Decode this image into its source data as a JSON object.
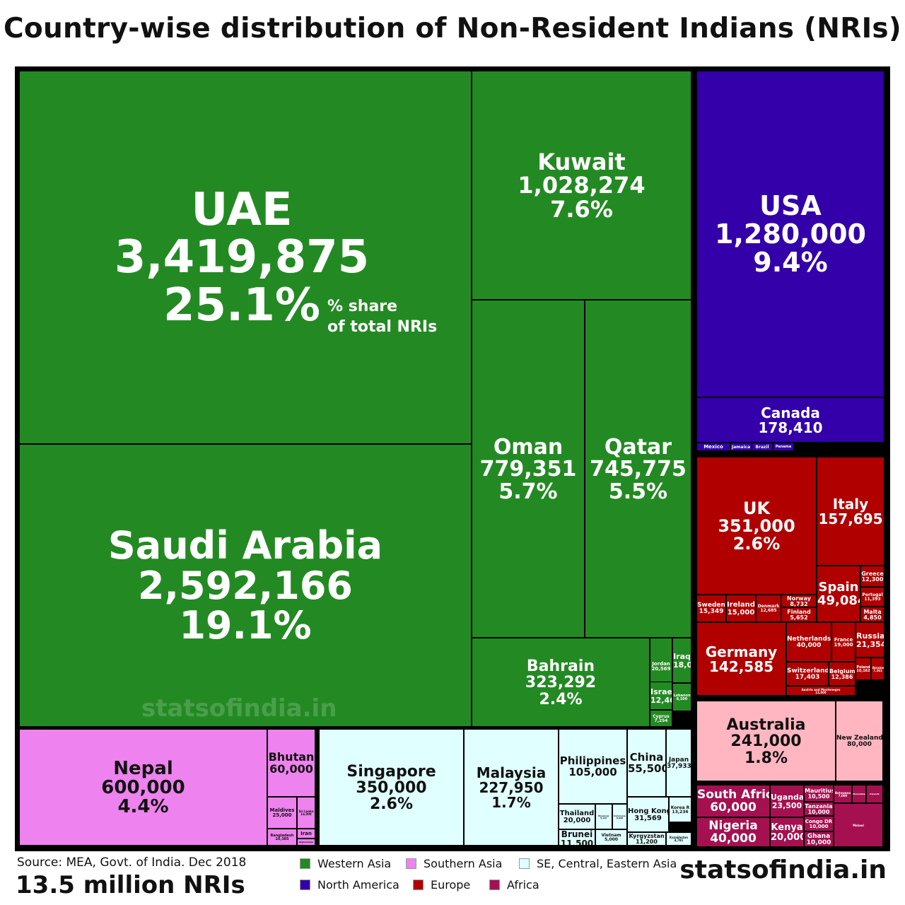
{
  "title": "Country-wise distribution of Non-Resident Indians (NRIs)",
  "share_note": [
    "% share",
    "of total NRIs"
  ],
  "watermark": "statsofindia.in",
  "source": "Source: MEA, Govt. of India. Dec 2018",
  "total": "13.5 million NRIs",
  "brand": "statsofindia.in",
  "colors": {
    "Western Asia": "#238a23",
    "Southern Asia": "#ee82ee",
    "SE, Central, Eastern Asia": "#e0ffff",
    "North America": "#3300aa",
    "Europe": "#b00000",
    "Africa": "#a51050",
    "Oceania": "#ffb6c1"
  },
  "legend": [
    {
      "label": "Western Asia",
      "color": "#238a23"
    },
    {
      "label": "Southern Asia",
      "color": "#ee82ee"
    },
    {
      "label": "SE, Central, Eastern Asia",
      "color": "#e0ffff"
    },
    {
      "label": "North America",
      "color": "#3300aa"
    },
    {
      "label": "Europe",
      "color": "#b00000"
    },
    {
      "label": "Africa",
      "color": "#a51050"
    }
  ],
  "chart_data": {
    "type": "treemap",
    "title": "Country-wise distribution of Non-Resident Indians (NRIs)",
    "total_label": "13.5 million NRIs",
    "items": [
      {
        "name": "UAE",
        "value": 3419875,
        "value_label": "3,419,875",
        "share": "25.1%",
        "region": "Western Asia"
      },
      {
        "name": "Saudi Arabia",
        "value": 2592166,
        "value_label": "2,592,166",
        "share": "19.1%",
        "region": "Western Asia"
      },
      {
        "name": "Kuwait",
        "value": 1028274,
        "value_label": "1,028,274",
        "share": "7.6%",
        "region": "Western Asia"
      },
      {
        "name": "Oman",
        "value": 779351,
        "value_label": "779,351",
        "share": "5.7%",
        "region": "Western Asia"
      },
      {
        "name": "Qatar",
        "value": 745775,
        "value_label": "745,775",
        "share": "5.5%",
        "region": "Western Asia"
      },
      {
        "name": "Bahrain",
        "value": 323292,
        "value_label": "323,292",
        "share": "2.4%",
        "region": "Western Asia"
      },
      {
        "name": "Jordan",
        "value": 20569,
        "value_label": "20,569",
        "region": "Western Asia"
      },
      {
        "name": "Iraq",
        "value": 18000,
        "value_label": "18,000",
        "region": "Western Asia"
      },
      {
        "name": "Israel",
        "value": 12467,
        "value_label": "12,467",
        "region": "Western Asia"
      },
      {
        "name": "Lebanon",
        "value": 8500,
        "value_label": "8,500",
        "region": "Western Asia"
      },
      {
        "name": "Cyprus",
        "value": 7254,
        "value_label": "7,254",
        "region": "Western Asia"
      },
      {
        "name": "USA",
        "value": 1280000,
        "value_label": "1,280,000",
        "share": "9.4%",
        "region": "North America"
      },
      {
        "name": "Canada",
        "value": 178410,
        "value_label": "178,410",
        "region": "North America"
      },
      {
        "name": "Mexico",
        "value": 0,
        "value_label": "",
        "region": "North America"
      },
      {
        "name": "Jamaica",
        "value": 0,
        "value_label": "",
        "region": "North America"
      },
      {
        "name": "Brazil",
        "value": 0,
        "value_label": "",
        "region": "North America"
      },
      {
        "name": "Panama",
        "value": 0,
        "value_label": "",
        "region": "North America"
      },
      {
        "name": "UK",
        "value": 351000,
        "value_label": "351,000",
        "share": "2.6%",
        "region": "Europe"
      },
      {
        "name": "Italy",
        "value": 157695,
        "value_label": "157,695",
        "region": "Europe"
      },
      {
        "name": "Spain",
        "value": 49084,
        "value_label": "49,084",
        "region": "Europe"
      },
      {
        "name": "Greece",
        "value": 12300,
        "value_label": "12,300",
        "region": "Europe"
      },
      {
        "name": "Portugal",
        "value": 11393,
        "value_label": "11,393",
        "region": "Europe"
      },
      {
        "name": "Malta",
        "value": 4850,
        "value_label": "4,850",
        "region": "Europe"
      },
      {
        "name": "Sweden",
        "value": 15349,
        "value_label": "15,349",
        "region": "Europe"
      },
      {
        "name": "Ireland",
        "value": 15000,
        "value_label": "15,000",
        "region": "Europe"
      },
      {
        "name": "Denmark",
        "value": 12685,
        "value_label": "12,685",
        "region": "Europe"
      },
      {
        "name": "Norway",
        "value": 8732,
        "value_label": "8,732",
        "region": "Europe"
      },
      {
        "name": "Finland",
        "value": 5652,
        "value_label": "5,652",
        "region": "Europe"
      },
      {
        "name": "Germany",
        "value": 142585,
        "value_label": "142,585",
        "region": "Europe"
      },
      {
        "name": "Netherlands",
        "value": 40000,
        "value_label": "40,000",
        "region": "Europe"
      },
      {
        "name": "France",
        "value": 19000,
        "value_label": "19,000",
        "region": "Europe"
      },
      {
        "name": "Switzerland",
        "value": 17403,
        "value_label": "17,403",
        "region": "Europe"
      },
      {
        "name": "Belgium",
        "value": 12386,
        "value_label": "12,386",
        "region": "Europe"
      },
      {
        "name": "Austria and Montenegro",
        "value": 12000,
        "value_label": "12,000",
        "region": "Europe"
      },
      {
        "name": "Russia",
        "value": 21354,
        "value_label": "21,354",
        "region": "Europe"
      },
      {
        "name": "Poland",
        "value": 10162,
        "value_label": "10,162",
        "region": "Europe"
      },
      {
        "name": "Ukraine",
        "value": 7361,
        "value_label": "7,361",
        "region": "Europe"
      },
      {
        "name": "Australia",
        "value": 241000,
        "value_label": "241,000",
        "share": "1.8%",
        "region": "Oceania"
      },
      {
        "name": "New Zealand",
        "value": 80000,
        "value_label": "80,000",
        "region": "Oceania"
      },
      {
        "name": "South Africa",
        "value": 60000,
        "value_label": "60,000",
        "region": "Africa"
      },
      {
        "name": "Nigeria",
        "value": 40000,
        "value_label": "40,000",
        "region": "Africa"
      },
      {
        "name": "Uganda",
        "value": 23500,
        "value_label": "23,500",
        "region": "Africa"
      },
      {
        "name": "Kenya",
        "value": 20000,
        "value_label": "20,000",
        "region": "Africa"
      },
      {
        "name": "Mauritius",
        "value": 10500,
        "value_label": "10,500",
        "region": "Africa"
      },
      {
        "name": "Tanzania",
        "value": 10000,
        "value_label": "10,000",
        "region": "Africa"
      },
      {
        "name": "Congo DR",
        "value": 10000,
        "value_label": "10,000",
        "region": "Africa"
      },
      {
        "name": "Ghana",
        "value": 10000,
        "value_label": "10,000",
        "region": "Africa"
      },
      {
        "name": "Botswana",
        "value": 7000,
        "value_label": "7,000",
        "region": "Africa"
      },
      {
        "name": "Mozambique",
        "value": 0,
        "value_label": "",
        "region": "Africa"
      },
      {
        "name": "Rwanda",
        "value": 0,
        "value_label": "",
        "region": "Africa"
      },
      {
        "name": "Malawi",
        "value": 0,
        "value_label": "",
        "region": "Africa"
      },
      {
        "name": "Nepal",
        "value": 600000,
        "value_label": "600,000",
        "share": "4.4%",
        "region": "Southern Asia"
      },
      {
        "name": "Bhutan",
        "value": 60000,
        "value_label": "60,000",
        "region": "Southern Asia"
      },
      {
        "name": "Maldives",
        "value": 25000,
        "value_label": "25,000",
        "region": "Southern Asia"
      },
      {
        "name": "Sri Lanka",
        "value": 14000,
        "value_label": "14,000",
        "region": "Southern Asia"
      },
      {
        "name": "Bangladesh",
        "value": 10385,
        "value_label": "10,385",
        "region": "Southern Asia"
      },
      {
        "name": "Iran",
        "value": 0,
        "value_label": "",
        "region": "Southern Asia"
      },
      {
        "name": "Afghanistan",
        "value": 0,
        "value_label": "",
        "region": "Southern Asia"
      },
      {
        "name": "Singapore",
        "value": 350000,
        "value_label": "350,000",
        "share": "2.6%",
        "region": "SE, Central, Eastern Asia"
      },
      {
        "name": "Malaysia",
        "value": 227950,
        "value_label": "227,950",
        "share": "1.7%",
        "region": "SE, Central, Eastern Asia"
      },
      {
        "name": "Philippines",
        "value": 105000,
        "value_label": "105,000",
        "region": "SE, Central, Eastern Asia"
      },
      {
        "name": "Thailand",
        "value": 20000,
        "value_label": "20,000",
        "region": "SE, Central, Eastern Asia"
      },
      {
        "name": "Brunei",
        "value": 11500,
        "value_label": "11,500",
        "region": "SE, Central, Eastern Asia"
      },
      {
        "name": "Myanmar",
        "value": 9207,
        "value_label": "9,207",
        "region": "SE, Central, Eastern Asia"
      },
      {
        "name": "Indonesia",
        "value": 8000,
        "value_label": "8,000",
        "region": "SE, Central, Eastern Asia"
      },
      {
        "name": "Vietnam",
        "value": 5000,
        "value_label": "5,000",
        "region": "SE, Central, Eastern Asia"
      },
      {
        "name": "China",
        "value": 55500,
        "value_label": "55,500",
        "region": "SE, Central, Eastern Asia"
      },
      {
        "name": "Japan",
        "value": 37933,
        "value_label": "37,933",
        "region": "SE, Central, Eastern Asia"
      },
      {
        "name": "Hong Kong",
        "value": 31569,
        "value_label": "31,569",
        "region": "SE, Central, Eastern Asia"
      },
      {
        "name": "Korea R",
        "value": 13236,
        "value_label": "13,236",
        "region": "SE, Central, Eastern Asia"
      },
      {
        "name": "Kyrgyzstan",
        "value": 11200,
        "value_label": "11,200",
        "region": "SE, Central, Eastern Asia"
      },
      {
        "name": "Kazakhstan",
        "value": 4781,
        "value_label": "4,781",
        "region": "SE, Central, Eastern Asia"
      }
    ]
  }
}
